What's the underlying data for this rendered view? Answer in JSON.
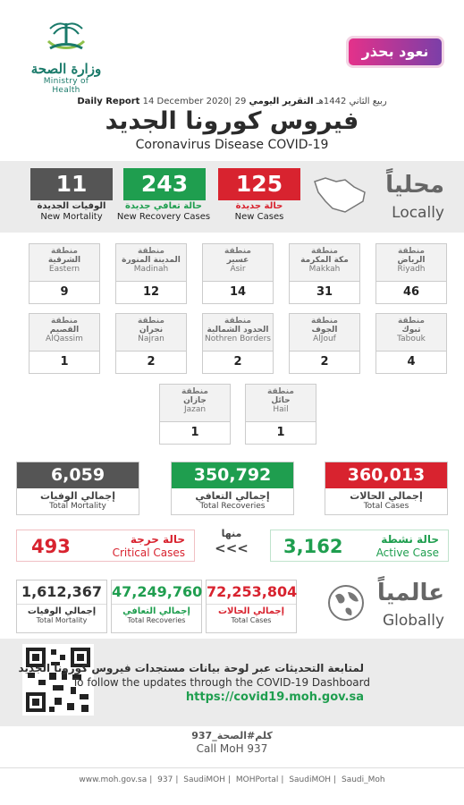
{
  "header": {
    "moh_ar": "وزارة الصحة",
    "moh_en": "Ministry of Health",
    "caution": "نعود بحذر",
    "report_ar": "التقرير اليومي",
    "report_date_hijri": "29 ربيع الثاني 1442هـ",
    "report_date": "14 December 2020",
    "report_en": "Daily Report",
    "title_ar": "فيروس كورونا الجديد",
    "title_en": "Coronavirus Disease COVID-19"
  },
  "local": {
    "title_ar": "محلياً",
    "title_en": "Locally",
    "new_cases": {
      "value": "125",
      "ar": "حالة جديدة",
      "en": "New Cases"
    },
    "new_recoveries": {
      "value": "243",
      "ar": "حالة تعافي جديدة",
      "en": "New Recovery Cases"
    },
    "new_mortality": {
      "value": "11",
      "ar": "الوفيات الجديدة",
      "en": "New Mortality"
    }
  },
  "region_prefix": "منطقة",
  "regions": [
    {
      "ar": "الرياض",
      "en": "Riyadh",
      "value": "46"
    },
    {
      "ar": "مكة المكرمة",
      "en": "Makkah",
      "value": "31"
    },
    {
      "ar": "عسير",
      "en": "Asir",
      "value": "14"
    },
    {
      "ar": "المدينة المنورة",
      "en": "Madinah",
      "value": "12"
    },
    {
      "ar": "الشرقية",
      "en": "Eastern",
      "value": "9"
    },
    {
      "ar": "تبوك",
      "en": "Tabouk",
      "value": "4"
    },
    {
      "ar": "الجوف",
      "en": "AlJouf",
      "value": "2"
    },
    {
      "ar": "الحدود الشمالية",
      "en": "Nothren Borders",
      "value": "2"
    },
    {
      "ar": "نجران",
      "en": "Najran",
      "value": "2"
    },
    {
      "ar": "القصيم",
      "en": "AlQassim",
      "value": "1"
    },
    {
      "ar": "حائل",
      "en": "Hail",
      "value": "1"
    },
    {
      "ar": "جازان",
      "en": "Jazan",
      "value": "1"
    }
  ],
  "totals": {
    "cases": {
      "value": "360,013",
      "ar": "إجمالي الحالات",
      "en": "Total Cases"
    },
    "recoveries": {
      "value": "350,792",
      "ar": "إجمالي التعافي",
      "en": "Total Recoveries"
    },
    "mortality": {
      "value": "6,059",
      "ar": "إجمالي الوفيات",
      "en": "Total Mortality"
    }
  },
  "active": {
    "value": "3,162",
    "ar": "حالة نشطة",
    "en": "Active Case"
  },
  "minha": "منها",
  "arrows": "<<<",
  "critical": {
    "value": "493",
    "ar": "حالة حرجة",
    "en": "Critical Cases"
  },
  "global": {
    "title_ar": "عالمياً",
    "title_en": "Globally",
    "cases": {
      "value": "72,253,804",
      "ar": "إجمالي الحالات",
      "en": "Total Cases"
    },
    "recoveries": {
      "value": "47,249,760",
      "ar": "إجمالي التعافي",
      "en": "Total Recoveries"
    },
    "mortality": {
      "value": "1,612,367",
      "ar": "إجمالي الوفيات",
      "en": "Total Mortality"
    }
  },
  "dashboard": {
    "ar": "لمتابعة التحديثات عبر لوحة بيانات مستجدات فيروس كورونا الجديد",
    "en": "To follow the updates through the COVID-19 Dashboard",
    "url": "https://covid19.moh.gov.sa"
  },
  "call": {
    "ar": "كلم#الصحة_937",
    "en": "Call MoH 937"
  },
  "footer": [
    "www.moh.gov.sa",
    "937",
    "SaudiMOH",
    "MOHPortal",
    "SaudiMOH",
    "Saudi_Moh"
  ],
  "colors": {
    "red": "#d8232f",
    "green": "#1f9e4f",
    "grey": "#555555"
  }
}
